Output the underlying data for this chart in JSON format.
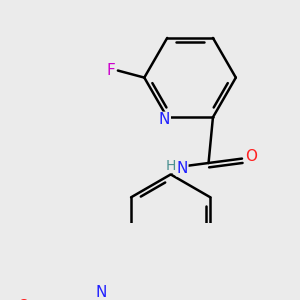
{
  "background_color": "#ebebeb",
  "bond_color": "#000000",
  "bond_width": 1.8,
  "atom_colors": {
    "F": "#cc00cc",
    "N": "#2020ff",
    "O": "#ff2020",
    "H_N": "#4a9090",
    "C": "#000000"
  },
  "font_size": 10,
  "fig_width": 3.0,
  "fig_height": 3.0,
  "dpi": 100
}
